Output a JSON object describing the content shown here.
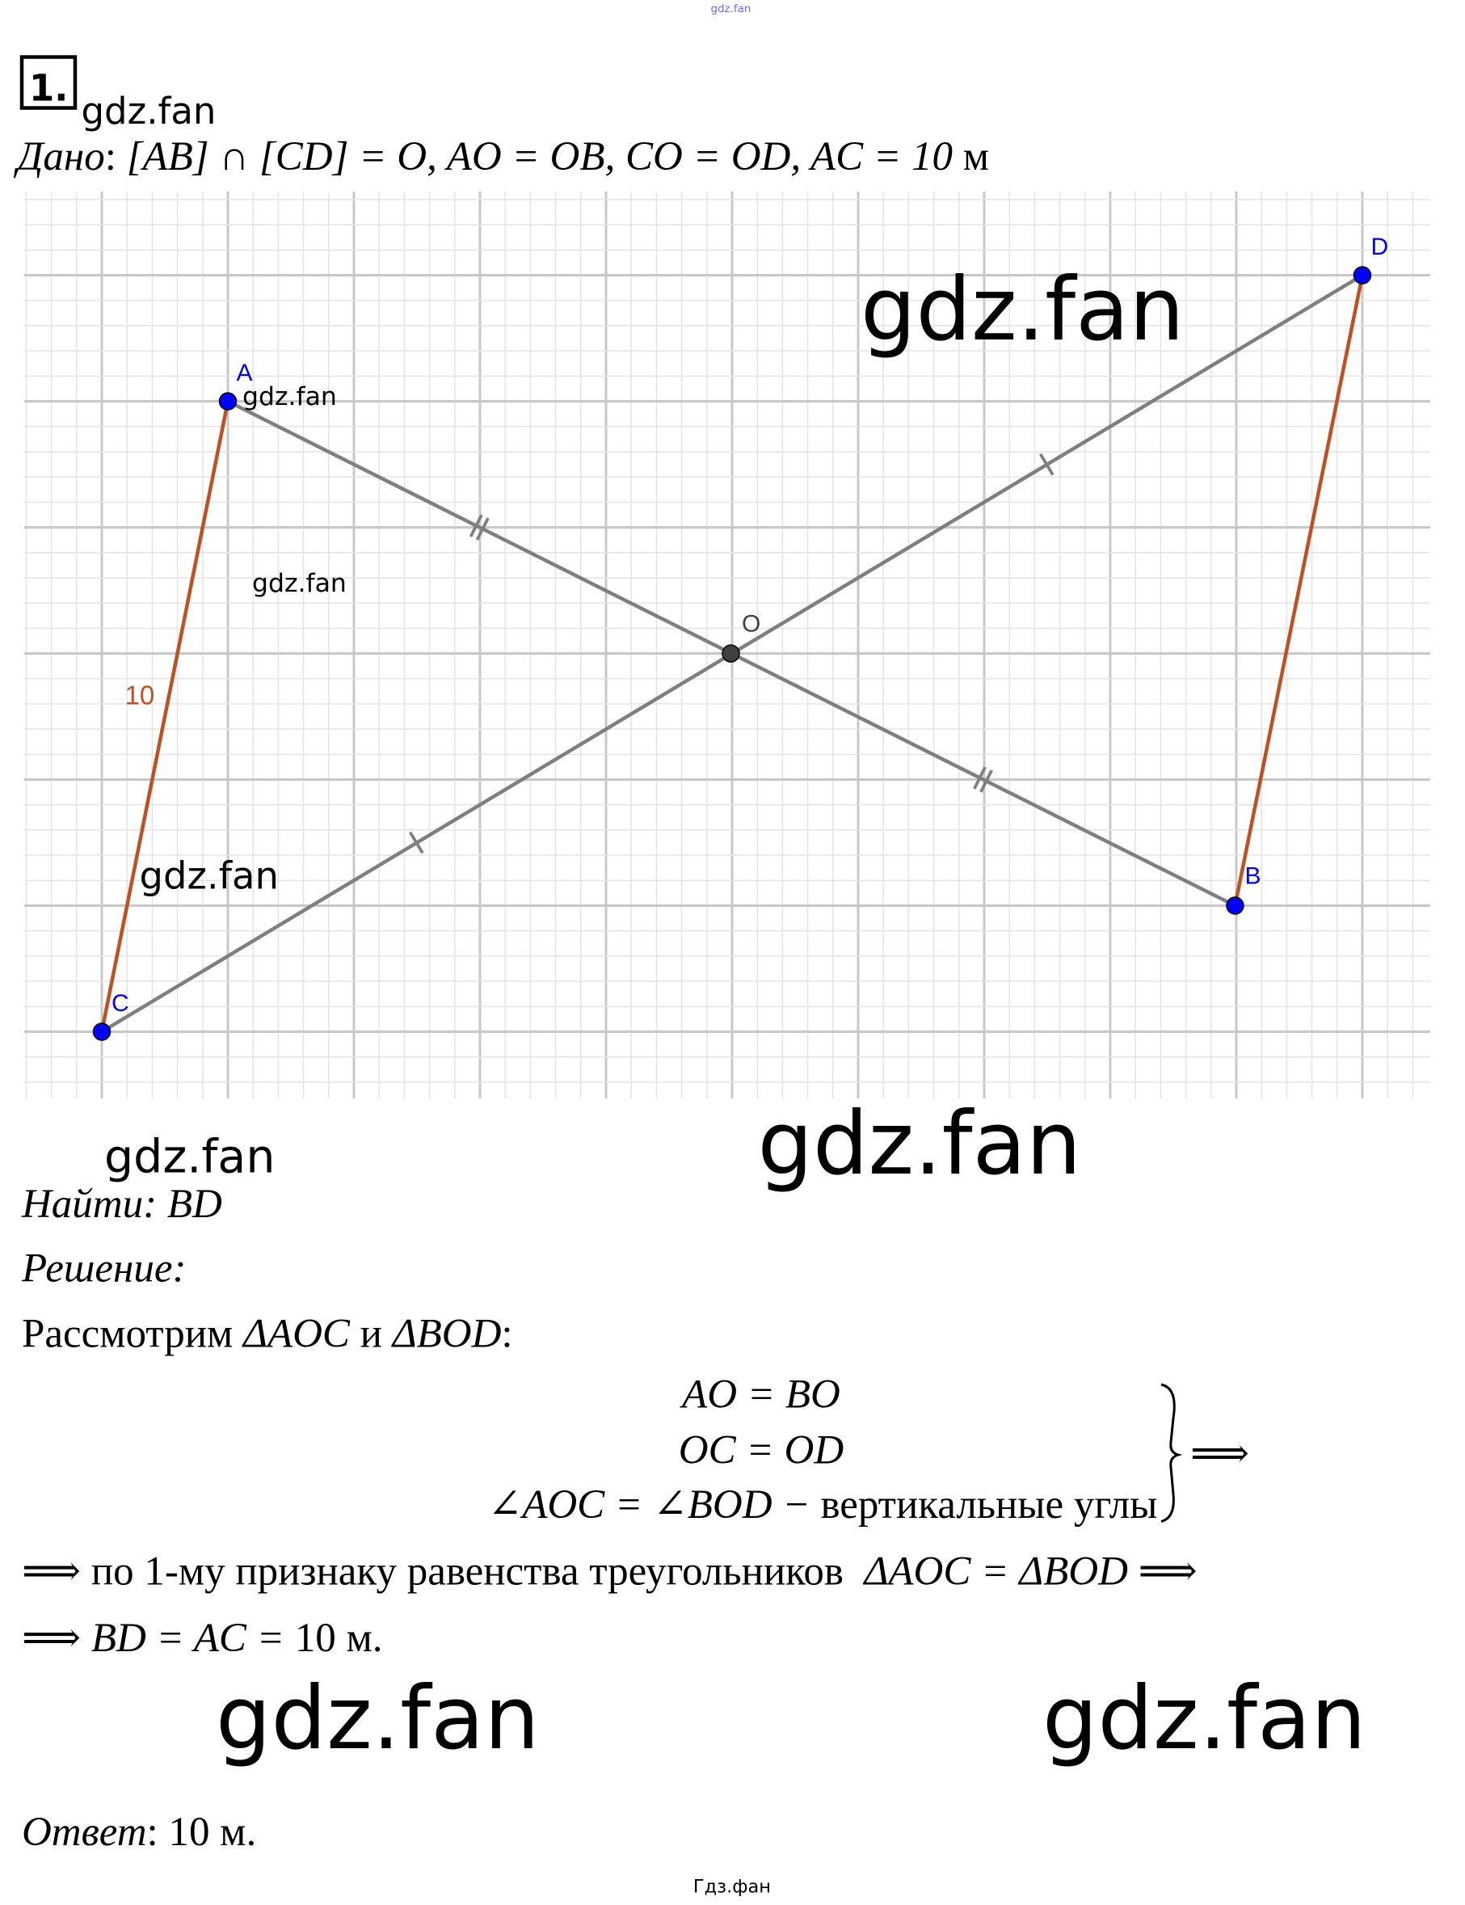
{
  "top_watermark": "gdz.fan",
  "task_number": "1.",
  "watermarks": {
    "header": "gdz.fan",
    "big_top_right": "gdz.fan",
    "near_a": "gdz.fan",
    "mid_left": "gdz.fan",
    "left_lower": "gdz.fan",
    "below_left": "gdz.fan",
    "below_big": "gdz.fan",
    "bottom_left": "gdz.fan",
    "bottom_right": "gdz.fan"
  },
  "given": {
    "label": "Дано",
    "colon": ": ",
    "formula": "[AB] ∩ [CD] = O, AO = OB, CO = OD, AC = 10",
    "unit": " м"
  },
  "figure": {
    "points": {
      "A": "A",
      "B": "B",
      "C": "C",
      "D": "D",
      "O": "O"
    },
    "ac_length_label": "10",
    "colors": {
      "grid_major": "#c8c8c8",
      "grid_minor": "#e4e4e4",
      "segment": "#7f7f7f",
      "side": "#c0501f",
      "point": "#0000ff",
      "center_point": "#404040",
      "point_label": "#0000ff",
      "length_label": "#c0501f"
    }
  },
  "find": {
    "label": "Найти",
    "colon": ": ",
    "value": "BD"
  },
  "solution": {
    "label": "Решение",
    "colon": ":",
    "consider_prefix": "Рассмотрим ",
    "tri1": "ΔAOC",
    "and": " и ",
    "tri2": "ΔBOD",
    "consider_suffix": ":",
    "system": {
      "line1": "AO = BO",
      "line2": "OC = OD",
      "line3_math": "∠AOC = ∠BOD − ",
      "line3_text": "вертикальные углы",
      "implies": "⟹"
    },
    "conclusion1_prefix": "⟹ по 1-му признаку равенства треугольников  ",
    "conclusion1_math": "ΔAOC = ΔBOD ⟹",
    "conclusion2_math": "⟹ BD = AC = ",
    "conclusion2_text": "10 м."
  },
  "answer": {
    "label": "Ответ",
    "colon": ": ",
    "value": "10 м."
  },
  "footer": "Гдз.фан"
}
